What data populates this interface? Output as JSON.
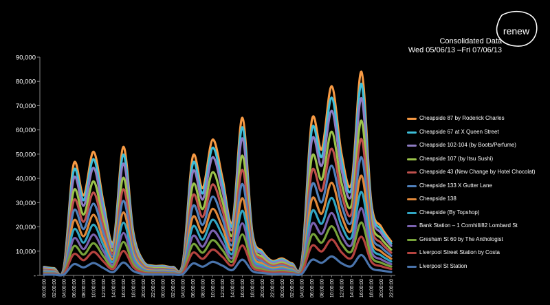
{
  "brand": {
    "logo_text": "renew"
  },
  "chart_data": {
    "type": "area",
    "title": "Consolidated Data",
    "subtitle": "Wed 05/06/13 –Fri 07/06/13",
    "xlabel": "",
    "ylabel": "",
    "ylim": [
      0,
      90000
    ],
    "yticks": [
      "-",
      "10,000",
      "20,000",
      "30,000",
      "40,000",
      "50,000",
      "60,000",
      "70,000",
      "80,000",
      "90,000"
    ],
    "grid": false,
    "legend_position": "right",
    "x": [
      "00:00:00",
      "02:00:00",
      "04:00:00",
      "06:00:00",
      "08:00:00",
      "10:00:00",
      "12:00:00",
      "14:00:00",
      "16:00:00",
      "18:00:00",
      "20:00:00",
      "22:00:00",
      "00:00:00",
      "02:00:00",
      "04:00:00",
      "06:00:00",
      "08:00:00",
      "10:00:00",
      "12:00:00",
      "14:00:00",
      "16:00:00",
      "18:00:00",
      "20:00:00",
      "22:00:00",
      "00:00:00",
      "02:00:00",
      "04:00:00",
      "06:00:00",
      "08:00:00",
      "10:00:00",
      "12:00:00",
      "14:00:00",
      "16:00:00",
      "18:00:00",
      "20:00:00",
      "22:00:00"
    ],
    "total_profile": [
      3500,
      3000,
      3500,
      46000,
      33000,
      51000,
      30000,
      14000,
      53000,
      18000,
      6000,
      4000,
      4000,
      3500,
      5500,
      49000,
      36000,
      56000,
      40000,
      22000,
      65000,
      18000,
      10000,
      6000,
      7000,
      5000,
      6500,
      64000,
      52000,
      78000,
      50000,
      38000,
      84000,
      30000,
      20000,
      14000
    ],
    "series": [
      {
        "name": "Cheapside 87 by Roderick Charles",
        "color": "#f79a44",
        "fraction": 1.0
      },
      {
        "name": "Cheapside 67 at X Queen Street",
        "color": "#3dbfd9",
        "fraction": 0.94
      },
      {
        "name": "Cheapside 102-104 (by Boots/Perfume)",
        "color": "#8e7cc3",
        "fraction": 0.87
      },
      {
        "name": "Cheapside 107 (by Itsu Sushi)",
        "color": "#9bc34a",
        "fraction": 0.76
      },
      {
        "name": "Cheapside 43 (New Change by Hotel Chocolat)",
        "color": "#c0504d",
        "fraction": 0.67
      },
      {
        "name": "Cheapside 133 X Gutter Lane",
        "color": "#4f81bd",
        "fraction": 0.58
      },
      {
        "name": "Cheapside 138",
        "color": "#e0883a",
        "fraction": 0.49
      },
      {
        "name": "Cheapside (By Topshop)",
        "color": "#31a6c4",
        "fraction": 0.41
      },
      {
        "name": "Bank Station – 1 Cornhill/82 Lombard St",
        "color": "#7a62b0",
        "fraction": 0.33
      },
      {
        "name": "Gresham St 60 by The Anthologist",
        "color": "#77a33a",
        "fraction": 0.26
      },
      {
        "name": "Liverpool Street Station by Costa",
        "color": "#b5433f",
        "fraction": 0.19
      },
      {
        "name": "Liverpool St Station",
        "color": "#4a74ac",
        "fraction": 0.1
      }
    ]
  }
}
